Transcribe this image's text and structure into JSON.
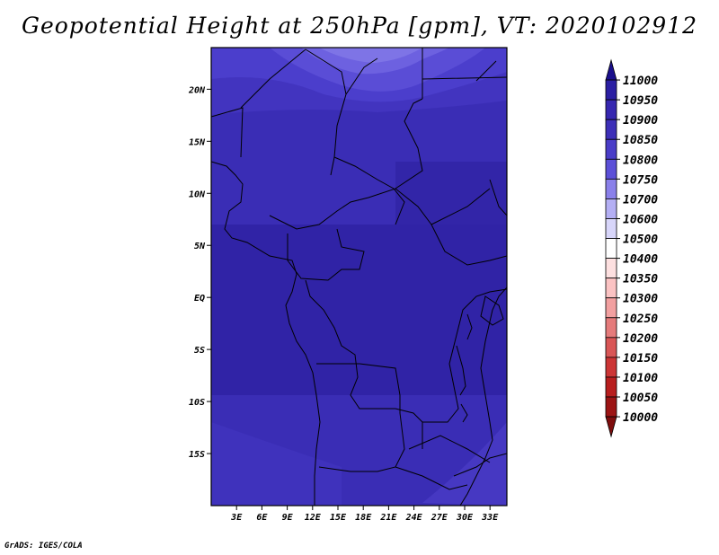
{
  "chart_data": {
    "type": "heatmap",
    "title": "Geopotential Height at 250hPa [gpm], VT: 2020102912",
    "variable": "Geopotential Height",
    "level": "250hPa",
    "units": "gpm",
    "valid_time": "2020102912",
    "lon_range": [
      0,
      35
    ],
    "lat_range": [
      -20,
      24
    ],
    "x_ticks": [
      "3E",
      "6E",
      "9E",
      "12E",
      "15E",
      "18E",
      "21E",
      "24E",
      "27E",
      "30E",
      "33E"
    ],
    "y_ticks": [
      "20N",
      "15N",
      "10N",
      "5N",
      "EQ",
      "5S",
      "10S",
      "15S"
    ],
    "x_tick_values": [
      3,
      6,
      9,
      12,
      15,
      18,
      21,
      24,
      27,
      30,
      33
    ],
    "y_tick_values": [
      20,
      15,
      10,
      5,
      0,
      -5,
      -10,
      -15
    ],
    "grid": false,
    "colorbar": {
      "position": "right",
      "levels": [
        "11000",
        "10950",
        "10900",
        "10850",
        "10800",
        "10750",
        "10700",
        "10600",
        "10500",
        "10400",
        "10350",
        "10300",
        "10250",
        "10200",
        "10150",
        "10100",
        "10050",
        "10000"
      ],
      "colors": [
        "#1a0f8c",
        "#2b1fa3",
        "#3627b0",
        "#3d2fb8",
        "#4a3dc8",
        "#5c50d8",
        "#8a80ea",
        "#b4aff4",
        "#d8d6fa",
        "#ffffff",
        "#fde0e0",
        "#fbc3c3",
        "#f2a0a0",
        "#e57b7b",
        "#d95656",
        "#cc3535",
        "#b81e1e",
        "#9c1414",
        "#7e0d0d"
      ]
    },
    "field_bands": [
      {
        "lat": 24,
        "value": 10780
      },
      {
        "lat": 22,
        "value": 10830
      },
      {
        "lat": 20,
        "value": 10870
      },
      {
        "lat": 16,
        "value": 10895
      },
      {
        "lat": 10,
        "value": 10915
      },
      {
        "lat": 0,
        "value": 10920
      },
      {
        "lat": -10,
        "value": 10915
      },
      {
        "lat": -15,
        "value": 10900
      },
      {
        "lat": -20,
        "value": 10880
      }
    ]
  },
  "credit": "GrADS: IGES/COLA"
}
